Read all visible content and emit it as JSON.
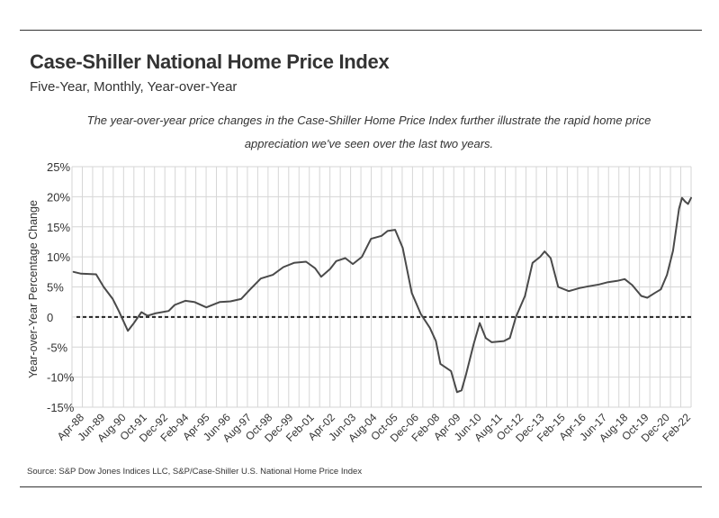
{
  "header": {
    "title": "Case-Shiller National Home Price Index",
    "subtitle": "Five-Year, Monthly, Year-over-Year",
    "caption": "The year-over-year price changes in the Case-Shiller Home Price Index further illustrate the rapid home price appreciation we've seen over the last two years."
  },
  "footer": {
    "source": "Source:  S&P Dow Jones Indices LLC, S&P/Case-Shiller U.S. National Home Price Index"
  },
  "colors": {
    "line": "#4a4a4a",
    "grid": "#d6d6d6",
    "zero_line": "#222222",
    "text": "#333333"
  },
  "chart_data": {
    "type": "line",
    "title": "",
    "xlabel": "",
    "ylabel": "Year-over-Year Percentage Change",
    "ylim": [
      -15,
      25
    ],
    "yticks": [
      {
        "value": 25,
        "label": "25%"
      },
      {
        "value": 20,
        "label": "20%"
      },
      {
        "value": 15,
        "label": "15%"
      },
      {
        "value": 10,
        "label": "10%"
      },
      {
        "value": 5,
        "label": "5%"
      },
      {
        "value": 0,
        "label": "0"
      },
      {
        "value": -5,
        "label": "-5%"
      },
      {
        "value": -10,
        "label": "-10%"
      },
      {
        "value": -15,
        "label": "-15%"
      }
    ],
    "xlim": [
      "1987-12",
      "2022-02"
    ],
    "x_tick_labels": [
      "Apr-88",
      "Jun-89",
      "Aug-90",
      "Oct-91",
      "Dec-92",
      "Feb-94",
      "Apr-95",
      "Jun-96",
      "Aug-97",
      "Oct-98",
      "Dec-99",
      "Feb-01",
      "Apr-02",
      "Jun-03",
      "Aug-04",
      "Oct-05",
      "Dec-06",
      "Feb-08",
      "Apr-09",
      "Jun-10",
      "Aug-11",
      "Oct-12",
      "Dec-13",
      "Feb-15",
      "Apr-16",
      "Jun-17",
      "Aug-18",
      "Oct-19",
      "Dec-20",
      "Feb-22"
    ],
    "grid": true,
    "zero_line": "dashed",
    "series": [
      {
        "points": [
          {
            "x": "1988-01",
            "y": 7.5
          },
          {
            "x": "1988-06",
            "y": 7.2
          },
          {
            "x": "1989-04",
            "y": 7.1
          },
          {
            "x": "1989-09",
            "y": 5.0
          },
          {
            "x": "1990-03",
            "y": 3.0
          },
          {
            "x": "1990-07",
            "y": 1.0
          },
          {
            "x": "1991-01",
            "y": -2.3
          },
          {
            "x": "1991-05",
            "y": -1.0
          },
          {
            "x": "1991-10",
            "y": 0.8
          },
          {
            "x": "1992-02",
            "y": 0.2
          },
          {
            "x": "1992-07",
            "y": 0.6
          },
          {
            "x": "1993-04",
            "y": 1.0
          },
          {
            "x": "1993-08",
            "y": 2.0
          },
          {
            "x": "1994-03",
            "y": 2.7
          },
          {
            "x": "1994-09",
            "y": 2.5
          },
          {
            "x": "1995-05",
            "y": 1.6
          },
          {
            "x": "1996-02",
            "y": 2.5
          },
          {
            "x": "1996-09",
            "y": 2.6
          },
          {
            "x": "1997-04",
            "y": 3.0
          },
          {
            "x": "1997-10",
            "y": 4.6
          },
          {
            "x": "1998-05",
            "y": 6.4
          },
          {
            "x": "1999-01",
            "y": 7.0
          },
          {
            "x": "1999-08",
            "y": 8.3
          },
          {
            "x": "2000-03",
            "y": 9.0
          },
          {
            "x": "2000-11",
            "y": 9.2
          },
          {
            "x": "2001-05",
            "y": 8.1
          },
          {
            "x": "2001-09",
            "y": 6.7
          },
          {
            "x": "2002-03",
            "y": 8.0
          },
          {
            "x": "2002-07",
            "y": 9.3
          },
          {
            "x": "2003-01",
            "y": 9.8
          },
          {
            "x": "2003-06",
            "y": 8.8
          },
          {
            "x": "2003-12",
            "y": 10.0
          },
          {
            "x": "2004-06",
            "y": 13.0
          },
          {
            "x": "2005-01",
            "y": 13.5
          },
          {
            "x": "2005-05",
            "y": 14.3
          },
          {
            "x": "2005-10",
            "y": 14.5
          },
          {
            "x": "2006-03",
            "y": 11.5
          },
          {
            "x": "2006-09",
            "y": 4.0
          },
          {
            "x": "2007-03",
            "y": 0.5
          },
          {
            "x": "2007-09",
            "y": -1.8
          },
          {
            "x": "2008-01",
            "y": -4.0
          },
          {
            "x": "2008-04",
            "y": -7.8
          },
          {
            "x": "2008-11",
            "y": -9.0
          },
          {
            "x": "2009-03",
            "y": -12.5
          },
          {
            "x": "2009-06",
            "y": -12.2
          },
          {
            "x": "2009-09",
            "y": -9.5
          },
          {
            "x": "2010-02",
            "y": -4.5
          },
          {
            "x": "2010-06",
            "y": -1.0
          },
          {
            "x": "2010-10",
            "y": -3.5
          },
          {
            "x": "2011-02",
            "y": -4.2
          },
          {
            "x": "2011-06",
            "y": -4.1
          },
          {
            "x": "2011-10",
            "y": -4.0
          },
          {
            "x": "2012-02",
            "y": -3.5
          },
          {
            "x": "2012-06",
            "y": 0.0
          },
          {
            "x": "2012-12",
            "y": 3.5
          },
          {
            "x": "2013-05",
            "y": 9.0
          },
          {
            "x": "2013-10",
            "y": 10.0
          },
          {
            "x": "2014-01",
            "y": 10.9
          },
          {
            "x": "2014-05",
            "y": 9.8
          },
          {
            "x": "2014-10",
            "y": 5.0
          },
          {
            "x": "2015-05",
            "y": 4.3
          },
          {
            "x": "2015-12",
            "y": 4.8
          },
          {
            "x": "2016-06",
            "y": 5.1
          },
          {
            "x": "2017-01",
            "y": 5.4
          },
          {
            "x": "2017-07",
            "y": 5.8
          },
          {
            "x": "2018-01",
            "y": 6.0
          },
          {
            "x": "2018-06",
            "y": 6.3
          },
          {
            "x": "2018-11",
            "y": 5.3
          },
          {
            "x": "2019-05",
            "y": 3.5
          },
          {
            "x": "2019-09",
            "y": 3.2
          },
          {
            "x": "2020-02",
            "y": 4.0
          },
          {
            "x": "2020-06",
            "y": 4.6
          },
          {
            "x": "2020-10",
            "y": 7.0
          },
          {
            "x": "2021-02",
            "y": 11.0
          },
          {
            "x": "2021-06",
            "y": 18.0
          },
          {
            "x": "2021-08",
            "y": 19.8
          },
          {
            "x": "2021-10",
            "y": 19.2
          },
          {
            "x": "2021-12",
            "y": 18.8
          },
          {
            "x": "2022-02",
            "y": 19.8
          }
        ]
      }
    ]
  }
}
